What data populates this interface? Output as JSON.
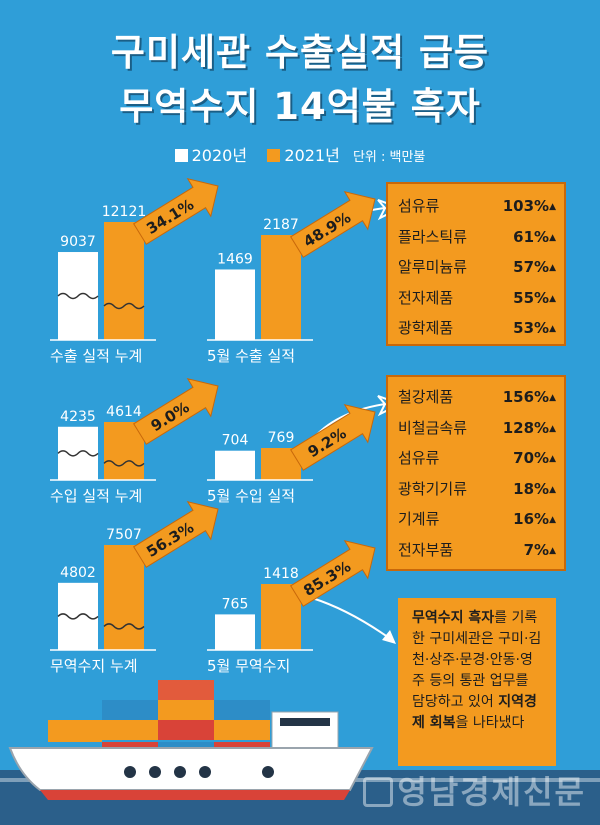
{
  "title": {
    "line1": "구미세관 수출실적 급등",
    "line2": "무역수지 14억불 흑자"
  },
  "legend": {
    "y2020": "2020년",
    "y2021": "2021년",
    "unit": "단위 : 백만불"
  },
  "colors": {
    "background": "#2f9ed8",
    "y2020": "#ffffff",
    "y2021": "#f39a1f",
    "arrow": "#f39a1f",
    "text": "#1d1d1d"
  },
  "chart_data": [
    {
      "type": "bar",
      "label": "수출 실적 누계",
      "categories": [
        "2020년",
        "2021년"
      ],
      "values": [
        9037,
        12121
      ],
      "growth": "34.1%",
      "axis_break": true
    },
    {
      "type": "bar",
      "label": "5월 수출 실적",
      "categories": [
        "2020년",
        "2021년"
      ],
      "values": [
        1469,
        2187
      ],
      "growth": "48.9%",
      "axis_break": false
    },
    {
      "type": "bar",
      "label": "수입 실적 누계",
      "categories": [
        "2020년",
        "2021년"
      ],
      "values": [
        4235,
        4614
      ],
      "growth": "9.0%",
      "axis_break": true
    },
    {
      "type": "bar",
      "label": "5월 수입 실적",
      "categories": [
        "2020년",
        "2021년"
      ],
      "values": [
        704,
        769
      ],
      "growth": "9.2%",
      "axis_break": false
    },
    {
      "type": "bar",
      "label": "무역수지 누계",
      "categories": [
        "2020년",
        "2021년"
      ],
      "values": [
        4802,
        7507
      ],
      "growth": "56.3%",
      "axis_break": true
    },
    {
      "type": "bar",
      "label": "5월 무역수지",
      "categories": [
        "2020년",
        "2021년"
      ],
      "values": [
        765,
        1418
      ],
      "growth": "85.3%",
      "axis_break": false
    }
  ],
  "export_items": [
    {
      "name": "섬유류",
      "pct": "103%"
    },
    {
      "name": "플라스틱류",
      "pct": "61%"
    },
    {
      "name": "알루미늄류",
      "pct": "57%"
    },
    {
      "name": "전자제품",
      "pct": "55%"
    },
    {
      "name": "광학제품",
      "pct": "53%"
    }
  ],
  "import_items": [
    {
      "name": "철강제품",
      "pct": "156%"
    },
    {
      "name": "비철금속류",
      "pct": "128%"
    },
    {
      "name": "섬유류",
      "pct": "70%"
    },
    {
      "name": "광학기기류",
      "pct": "18%"
    },
    {
      "name": "기계류",
      "pct": "16%"
    },
    {
      "name": "전자부품",
      "pct": "7%"
    }
  ],
  "note": {
    "bold1": "무역수지 흑자",
    "text1": "를 기록한 구미세관은 구미·김천·상주·문경·안동·영주 등의 통관 업무를 담당하고 있어 ",
    "bold2": "지역경제 회복",
    "text2": "을 나타냈다"
  },
  "watermark": "영남경제신문"
}
